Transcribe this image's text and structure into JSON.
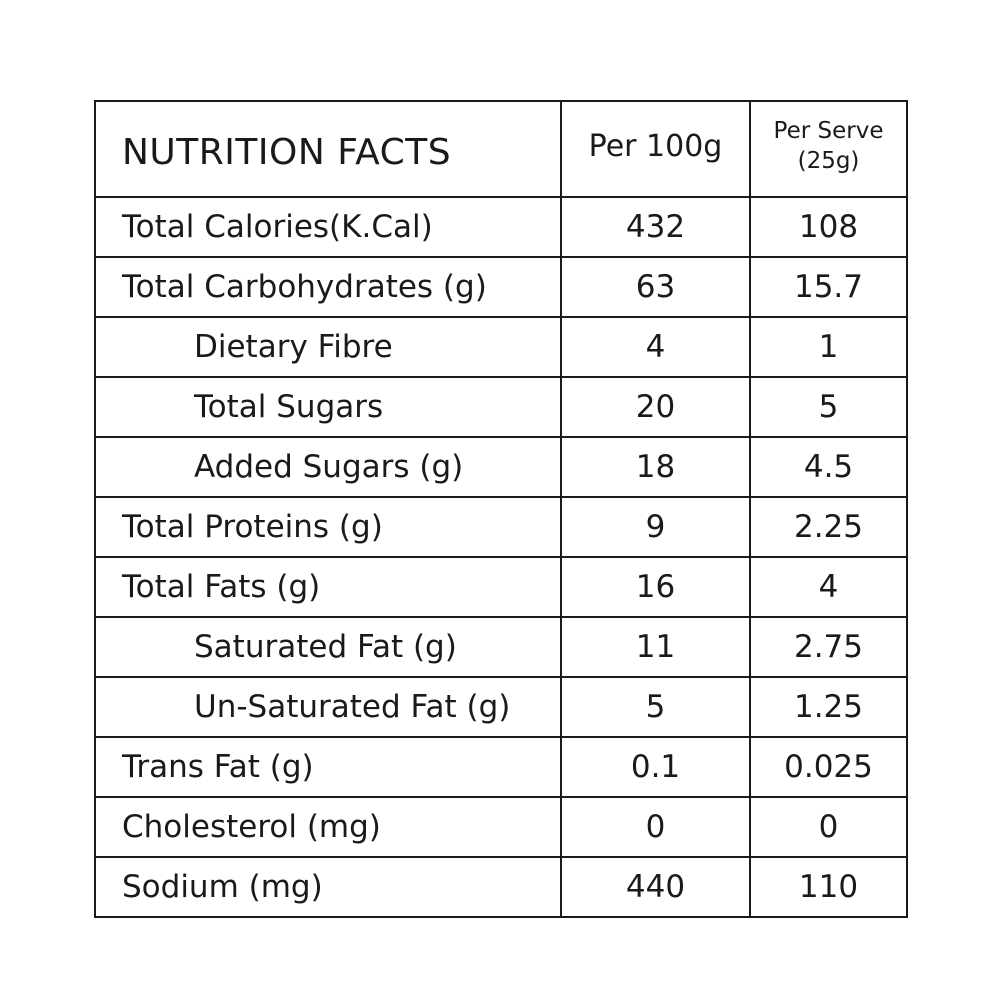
{
  "table": {
    "title": "NUTRITION FACTS",
    "col_per100": "Per 100g",
    "col_perserve_line1": "Per Serve",
    "col_perserve_line2": "(25g)",
    "rows": [
      {
        "label": "Total Calories(K.Cal)",
        "per100": "432",
        "perserve": "108"
      },
      {
        "label": "Total Carbohydrates (g)",
        "per100": "63",
        "perserve": "15.7"
      },
      {
        "label": "Dietary Fibre",
        "per100": "4",
        "perserve": "1"
      },
      {
        "label": "Total Sugars",
        "per100": "20",
        "perserve": "5"
      },
      {
        "label": "Added Sugars (g)",
        "per100": "18",
        "perserve": "4.5"
      },
      {
        "label": "Total Proteins (g)",
        "per100": "9",
        "perserve": "2.25"
      },
      {
        "label": "Total Fats (g)",
        "per100": "16",
        "perserve": "4"
      },
      {
        "label": "Saturated Fat (g)",
        "per100": "11",
        "perserve": "2.75"
      },
      {
        "label": "Un-Saturated Fat (g)",
        "per100": "5",
        "perserve": "1.25"
      },
      {
        "label": "Trans Fat (g)",
        "per100": "0.1",
        "perserve": "0.025"
      },
      {
        "label": "Cholesterol (mg)",
        "per100": "0",
        "perserve": "0"
      },
      {
        "label": "Sodium (mg)",
        "per100": "440",
        "perserve": "110"
      }
    ]
  }
}
